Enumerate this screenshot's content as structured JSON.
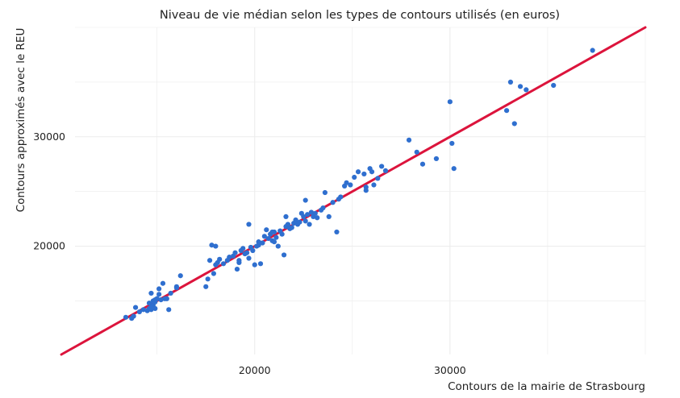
{
  "chart_data": {
    "type": "scatter",
    "title": "Niveau de vie médian selon les types de contours utilisés (en euros)",
    "xlabel": "Contours de la mairie de Strasbourg",
    "ylabel": "Contours approximés avec le REU",
    "xlim": [
      10800,
      40000
    ],
    "ylim": [
      10100,
      40000
    ],
    "x_ticks": [
      20000,
      30000
    ],
    "x_tick_labels": [
      "20000",
      "30000"
    ],
    "y_ticks": [
      20000,
      30000
    ],
    "y_tick_labels": [
      "20000",
      "30000"
    ],
    "grid": true,
    "legend": "none",
    "colors": {
      "points": "#2f6fcf",
      "reference_line": "#dc143c",
      "grid": "#ebebeb"
    },
    "reference_line": {
      "type": "identity",
      "from": 10100,
      "to": 40000
    },
    "points": [
      [
        13400,
        13500
      ],
      [
        13700,
        13400
      ],
      [
        13800,
        13600
      ],
      [
        13900,
        14400
      ],
      [
        14100,
        14000
      ],
      [
        14300,
        14200
      ],
      [
        14500,
        14100
      ],
      [
        14600,
        14300
      ],
      [
        14600,
        14800
      ],
      [
        14700,
        14200
      ],
      [
        14800,
        14600
      ],
      [
        14800,
        15000
      ],
      [
        14900,
        14300
      ],
      [
        14900,
        14900
      ],
      [
        15000,
        15200
      ],
      [
        15100,
        16100
      ],
      [
        15100,
        15600
      ],
      [
        15200,
        15100
      ],
      [
        15300,
        16600
      ],
      [
        15400,
        15200
      ],
      [
        15500,
        15200
      ],
      [
        15600,
        14200
      ],
      [
        15700,
        15700
      ],
      [
        16000,
        16300
      ],
      [
        16200,
        17300
      ],
      [
        16000,
        16200
      ],
      [
        14700,
        15700
      ],
      [
        14900,
        15100
      ],
      [
        14700,
        14400
      ],
      [
        15000,
        15200
      ],
      [
        17500,
        16300
      ],
      [
        17600,
        17000
      ],
      [
        17700,
        18700
      ],
      [
        17900,
        17500
      ],
      [
        18000,
        18300
      ],
      [
        18100,
        18500
      ],
      [
        18200,
        18800
      ],
      [
        18400,
        18400
      ],
      [
        18600,
        18700
      ],
      [
        18700,
        19000
      ],
      [
        18900,
        19100
      ],
      [
        19000,
        19400
      ],
      [
        19100,
        17900
      ],
      [
        19200,
        18500
      ],
      [
        19300,
        19600
      ],
      [
        19400,
        19800
      ],
      [
        19500,
        19300
      ],
      [
        19600,
        19400
      ],
      [
        19700,
        18900
      ],
      [
        19800,
        19900
      ],
      [
        19900,
        19600
      ],
      [
        20000,
        18300
      ],
      [
        20100,
        20000
      ],
      [
        20200,
        20100
      ],
      [
        20300,
        18400
      ],
      [
        20400,
        20300
      ],
      [
        20500,
        20900
      ],
      [
        20600,
        21500
      ],
      [
        20700,
        20700
      ],
      [
        20800,
        21100
      ],
      [
        20900,
        20500
      ],
      [
        21000,
        21300
      ],
      [
        21100,
        20800
      ],
      [
        21200,
        20000
      ],
      [
        21300,
        21400
      ],
      [
        21400,
        21100
      ],
      [
        21500,
        19200
      ],
      [
        21600,
        21800
      ],
      [
        21700,
        22000
      ],
      [
        21800,
        21600
      ],
      [
        21900,
        21700
      ],
      [
        22000,
        22100
      ],
      [
        22100,
        22400
      ],
      [
        22200,
        22000
      ],
      [
        22300,
        22200
      ],
      [
        22400,
        23000
      ],
      [
        22500,
        22700
      ],
      [
        22600,
        22300
      ],
      [
        22700,
        22900
      ],
      [
        22800,
        22000
      ],
      [
        22900,
        23100
      ],
      [
        23000,
        22700
      ],
      [
        23100,
        23000
      ],
      [
        23200,
        22600
      ],
      [
        23400,
        23300
      ],
      [
        23500,
        23500
      ],
      [
        23600,
        24900
      ],
      [
        23800,
        22700
      ],
      [
        24000,
        24000
      ],
      [
        24200,
        21300
      ],
      [
        24300,
        24300
      ],
      [
        24400,
        24500
      ],
      [
        24600,
        25500
      ],
      [
        24700,
        25800
      ],
      [
        24900,
        25600
      ],
      [
        25100,
        26300
      ],
      [
        25300,
        26800
      ],
      [
        25600,
        26600
      ],
      [
        25700,
        25100
      ],
      [
        25700,
        25400
      ],
      [
        25900,
        27100
      ],
      [
        26000,
        26800
      ],
      [
        26100,
        25600
      ],
      [
        26300,
        26200
      ],
      [
        26500,
        27300
      ],
      [
        26700,
        26900
      ],
      [
        27900,
        29700
      ],
      [
        28300,
        28600
      ],
      [
        28600,
        27500
      ],
      [
        29300,
        28000
      ],
      [
        30000,
        33200
      ],
      [
        30100,
        29400
      ],
      [
        30200,
        27100
      ],
      [
        32900,
        32400
      ],
      [
        33100,
        35000
      ],
      [
        33300,
        31200
      ],
      [
        33600,
        34600
      ],
      [
        33900,
        34300
      ],
      [
        35300,
        34700
      ],
      [
        37300,
        37900
      ],
      [
        17800,
        20100
      ],
      [
        18000,
        20000
      ],
      [
        19700,
        22000
      ],
      [
        20900,
        21300
      ],
      [
        21600,
        22700
      ],
      [
        22600,
        24200
      ],
      [
        21000,
        20400
      ],
      [
        20200,
        20400
      ],
      [
        19200,
        18700
      ],
      [
        22100,
        22300
      ]
    ]
  }
}
